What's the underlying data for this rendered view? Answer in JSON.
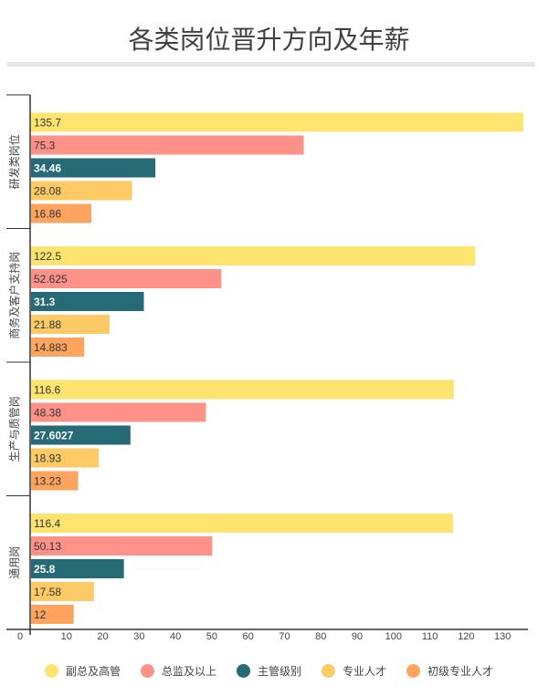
{
  "title": "各类岗位晋升方向及年薪",
  "chart_data": {
    "type": "bar",
    "orientation": "horizontal",
    "categories": [
      "研发类岗位",
      "商务及客户支持岗",
      "生产与质管岗",
      "通用岗"
    ],
    "series": [
      {
        "name": "副总及高管",
        "color": "#fde46e",
        "labels": [
          "135.7",
          "122.5",
          "116.6",
          "116.4"
        ],
        "values": [
          135.7,
          122.5,
          116.6,
          116.4
        ]
      },
      {
        "name": "总监及以上",
        "color": "#fe9188",
        "labels": [
          "75.3",
          "52.625",
          "48.38",
          "50.13"
        ],
        "values": [
          75.3,
          52.625,
          48.38,
          50.13
        ]
      },
      {
        "name": "主管级别",
        "color": "#266a76",
        "labels": [
          "34.46",
          "31.3",
          "27.6027",
          "25.8"
        ],
        "values": [
          34.46,
          31.3,
          27.6027,
          25.8
        ]
      },
      {
        "name": "专业人才",
        "color": "#fdca66",
        "labels": [
          "28.08",
          "21.88",
          "18.93",
          "17.58"
        ],
        "values": [
          28.08,
          21.88,
          18.93,
          17.58
        ]
      },
      {
        "name": "初级专业人才",
        "color": "#fda55e",
        "labels": [
          "16.86",
          "14.883",
          "13.23",
          "12"
        ],
        "values": [
          16.86,
          14.883,
          13.23,
          12
        ]
      }
    ],
    "xlim": [
      0,
      137
    ],
    "xticks": [
      0,
      10,
      20,
      30,
      40,
      50,
      60,
      70,
      80,
      90,
      100,
      110,
      120,
      130
    ],
    "legend_position": "bottom",
    "grid": false
  }
}
